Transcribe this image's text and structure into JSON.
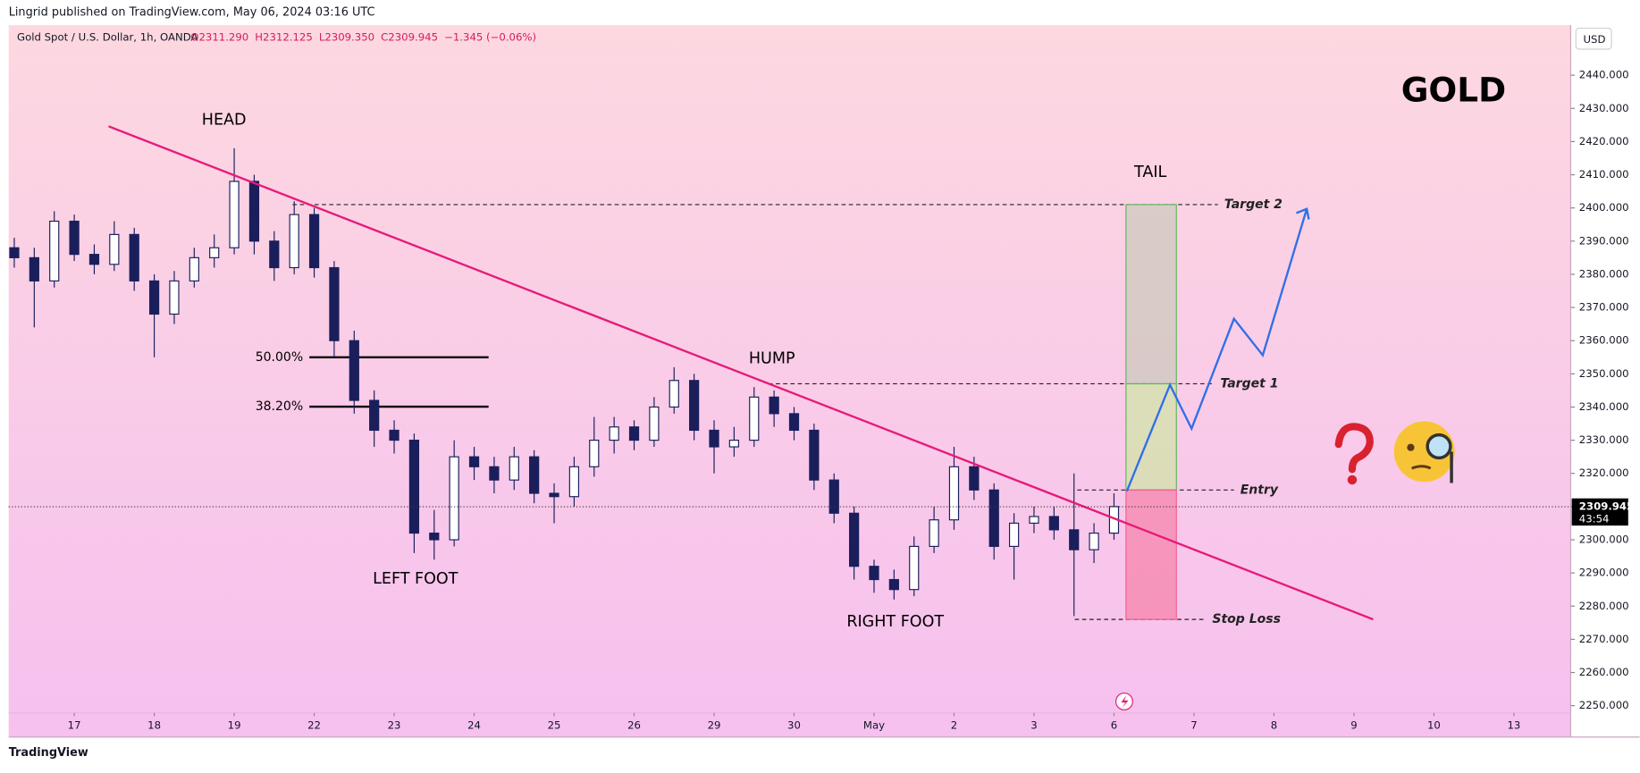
{
  "header": {
    "publisher": "Lingrid published on TradingView.com, May 06, 2024 03:16 UTC",
    "footer_logo": "TradingView"
  },
  "chart_data": {
    "type": "candlestick",
    "title": "Gold Spot / U.S. Dollar, 1h, OANDA",
    "quote": [
      "O2311.290",
      "H2312.125",
      "L2309.350",
      "C2309.945",
      "−1.345 (−0.06%)"
    ],
    "currency": "USD",
    "watermark": "GOLD",
    "x": [
      -0.75,
      -0.5,
      -0.25,
      0,
      0.25,
      0.5,
      0.75,
      1,
      1.25,
      1.5,
      1.75,
      2,
      2.25,
      2.5,
      2.75,
      3,
      3.25,
      3.5,
      3.75,
      4,
      4.25,
      4.5,
      4.75,
      5,
      5.25,
      5.5,
      5.75,
      6,
      6.25,
      6.5,
      6.75,
      7,
      7.25,
      7.5,
      7.75,
      8,
      8.25,
      8.5,
      8.75,
      9,
      9.25,
      9.5,
      9.75,
      10,
      10.25,
      10.5,
      10.75,
      11,
      11.25,
      11.5,
      11.75,
      12,
      12.25,
      12.5,
      12.75,
      13
    ],
    "open": [
      2388,
      2385,
      2378,
      2396,
      2386,
      2383,
      2392,
      2378,
      2368,
      2378,
      2385,
      2388,
      2408,
      2390,
      2382,
      2398,
      2382,
      2360,
      2342,
      2333,
      2330,
      2302,
      2300,
      2325,
      2322,
      2318,
      2325,
      2314,
      2313,
      2322,
      2330,
      2334,
      2330,
      2340,
      2348,
      2333,
      2328,
      2330,
      2343,
      2338,
      2333,
      2318,
      2308,
      2292,
      2288,
      2285,
      2298,
      2306,
      2322,
      2315,
      2298,
      2305,
      2307,
      2303,
      2297,
      2302
    ],
    "high": [
      2391,
      2388,
      2399,
      2398,
      2389,
      2396,
      2394,
      2380,
      2381,
      2388,
      2392,
      2418,
      2410,
      2393,
      2402,
      2400,
      2384,
      2363,
      2345,
      2336,
      2332,
      2309,
      2330,
      2328,
      2325,
      2328,
      2327,
      2317,
      2325,
      2337,
      2337,
      2336,
      2343,
      2352,
      2350,
      2336,
      2334,
      2346,
      2345,
      2340,
      2335,
      2320,
      2310,
      2294,
      2291,
      2301,
      2310,
      2328,
      2325,
      2317,
      2308,
      2310,
      2310,
      2320,
      2305,
      2314
    ],
    "low": [
      2382,
      2364,
      2376,
      2384,
      2380,
      2381,
      2375,
      2355,
      2365,
      2376,
      2382,
      2386,
      2386,
      2378,
      2380,
      2379,
      2355,
      2338,
      2328,
      2326,
      2296,
      2294,
      2298,
      2318,
      2314,
      2315,
      2311,
      2305,
      2310,
      2319,
      2326,
      2327,
      2328,
      2338,
      2330,
      2320,
      2325,
      2328,
      2334,
      2330,
      2315,
      2305,
      2288,
      2284,
      2282,
      2283,
      2296,
      2303,
      2312,
      2294,
      2288,
      2302,
      2300,
      2277,
      2293,
      2300
    ],
    "close": [
      2385,
      2378,
      2396,
      2386,
      2383,
      2392,
      2378,
      2368,
      2378,
      2385,
      2388,
      2408,
      2390,
      2382,
      2398,
      2382,
      2360,
      2342,
      2333,
      2330,
      2302,
      2300,
      2325,
      2322,
      2318,
      2325,
      2314,
      2313,
      2322,
      2330,
      2334,
      2330,
      2340,
      2348,
      2333,
      2328,
      2330,
      2343,
      2338,
      2333,
      2318,
      2308,
      2292,
      2288,
      2285,
      2298,
      2306,
      2322,
      2315,
      2298,
      2305,
      2307,
      2303,
      2297,
      2302,
      2310
    ],
    "up_color": "#ffffff",
    "down_color": "#1a1f5c",
    "xlim": [
      -0.82,
      18.71
    ],
    "xticks": [
      {
        "value": 0,
        "label": "17"
      },
      {
        "value": 1,
        "label": "18"
      },
      {
        "value": 2,
        "label": "19"
      },
      {
        "value": 3,
        "label": "22"
      },
      {
        "value": 4,
        "label": "23"
      },
      {
        "value": 5,
        "label": "24"
      },
      {
        "value": 6,
        "label": "25"
      },
      {
        "value": 7,
        "label": "26"
      },
      {
        "value": 8,
        "label": "29"
      },
      {
        "value": 9,
        "label": "30"
      },
      {
        "value": 10,
        "label": "May"
      },
      {
        "value": 11,
        "label": "2"
      },
      {
        "value": 12,
        "label": "3"
      },
      {
        "value": 13,
        "label": "6"
      },
      {
        "value": 14,
        "label": "7"
      },
      {
        "value": 15,
        "label": "8"
      },
      {
        "value": 16,
        "label": "9"
      },
      {
        "value": 17,
        "label": "10"
      },
      {
        "value": 18,
        "label": "13"
      }
    ],
    "ylim": [
      2247.8,
      2455.1
    ],
    "yticks": [
      {
        "value": 2250,
        "label": "2250.000"
      },
      {
        "value": 2260,
        "label": "2260.000"
      },
      {
        "value": 2270,
        "label": "2270.000"
      },
      {
        "value": 2280,
        "label": "2280.000"
      },
      {
        "value": 2290,
        "label": "2290.000"
      },
      {
        "value": 2300,
        "label": "2300.000"
      },
      {
        "value": 2310,
        "label": "2310.000"
      },
      {
        "value": 2320,
        "label": "2320.000"
      },
      {
        "value": 2330,
        "label": "2330.000"
      },
      {
        "value": 2340,
        "label": "2340.000"
      },
      {
        "value": 2350,
        "label": "2350.000"
      },
      {
        "value": 2360,
        "label": "2360.000"
      },
      {
        "value": 2370,
        "label": "2370.000"
      },
      {
        "value": 2380,
        "label": "2380.000"
      },
      {
        "value": 2390,
        "label": "2390.000"
      },
      {
        "value": 2400,
        "label": "2400.000"
      },
      {
        "value": 2410,
        "label": "2410.000"
      },
      {
        "value": 2420,
        "label": "2420.000"
      },
      {
        "value": 2430,
        "label": "2430.000"
      },
      {
        "value": 2440,
        "label": "2440.000"
      }
    ],
    "last_price": {
      "value": 2309.945,
      "label": "2309.945"
    },
    "countdown": "43:54",
    "trendline": {
      "x": [
        0.43,
        16.24
      ],
      "y": [
        2424.6,
        2276
      ],
      "color": "#e8197a"
    },
    "fib": [
      {
        "label": "50.00%",
        "value": 2355,
        "x": [
          2.94,
          5.18
        ]
      },
      {
        "label": "38.20%",
        "value": 2340.1,
        "x": [
          2.94,
          5.18
        ]
      }
    ],
    "levels": [
      {
        "name": "Target 2",
        "value": 2401,
        "x": [
          2.73,
          14.3
        ]
      },
      {
        "name": "Target 1",
        "value": 2347,
        "x": [
          8.68,
          14.25
        ]
      },
      {
        "name": "Entry",
        "value": 2315,
        "x": [
          12.54,
          14.5
        ]
      },
      {
        "name": "Stop Loss",
        "value": 2276,
        "x": [
          12.51,
          14.15
        ]
      }
    ],
    "position_x": [
      13.15,
      13.78
    ],
    "projection": {
      "x": [
        13.16,
        13.7,
        13.97,
        14.5,
        14.86,
        15.41
      ],
      "y": [
        2314.6,
        2346.7,
        2333.5,
        2366.6,
        2355.6,
        2399.7
      ],
      "color": "#2f6fe8"
    },
    "pattern_labels": [
      "HEAD",
      "LEFT FOOT",
      "HUMP",
      "RIGHT FOOT",
      "TAIL"
    ]
  }
}
